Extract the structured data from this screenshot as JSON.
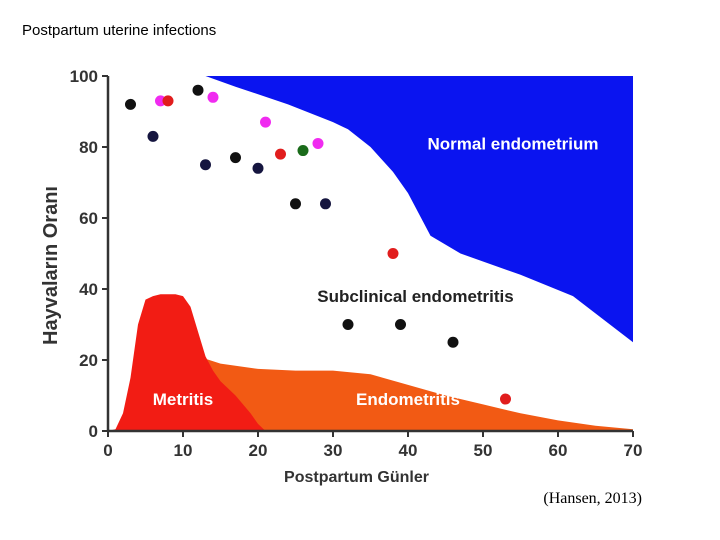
{
  "page": {
    "title": "Postpartum uterine infections",
    "citation": "(Hansen, 2013)"
  },
  "chart_data": {
    "type": "area",
    "title": "",
    "xlabel": "Postpartum Günler",
    "ylabel": "Hayvaların Oranı",
    "xlim": [
      0,
      70
    ],
    "ylim": [
      0,
      100
    ],
    "x_ticks": [
      0,
      10,
      20,
      30,
      40,
      50,
      60,
      70
    ],
    "y_ticks": [
      0,
      20,
      40,
      60,
      80,
      100
    ],
    "grid": false,
    "regions": [
      {
        "name": "Normal endometrium",
        "color": "#0a14f0",
        "label_at": [
          54,
          81
        ],
        "label_color": "#ffffff",
        "upper": [
          [
            0,
            100
          ],
          [
            13,
            100
          ],
          [
            17,
            97
          ],
          [
            24,
            92
          ],
          [
            30,
            87
          ],
          [
            32,
            85
          ],
          [
            35,
            80
          ],
          [
            38,
            73
          ],
          [
            40,
            67
          ],
          [
            43,
            55
          ],
          [
            47,
            50
          ],
          [
            55,
            44
          ],
          [
            62,
            38
          ],
          [
            70,
            25
          ]
        ],
        "lower_is_top": true
      },
      {
        "name": "Subclinical endometritis",
        "color": "#ffffff",
        "label_at": [
          41,
          38
        ],
        "label_color": "#222222"
      },
      {
        "name": "Endometritis",
        "color": "#f25a14",
        "label_at": [
          40,
          9
        ],
        "label_color": "#ffffff",
        "upper": [
          [
            12,
            21
          ],
          [
            15,
            19
          ],
          [
            20,
            17.5
          ],
          [
            25,
            17
          ],
          [
            30,
            17
          ],
          [
            35,
            16
          ],
          [
            40,
            13
          ],
          [
            45,
            10
          ],
          [
            50,
            7.5
          ],
          [
            55,
            5
          ],
          [
            60,
            3
          ],
          [
            65,
            1.5
          ],
          [
            70,
            0.5
          ]
        ]
      },
      {
        "name": "Metritis",
        "color": "#f21c14",
        "label_at": [
          10,
          9
        ],
        "label_color": "#ffffff",
        "upper": [
          [
            0,
            0
          ],
          [
            1,
            0.5
          ],
          [
            2,
            5
          ],
          [
            3,
            15
          ],
          [
            4,
            30
          ],
          [
            5,
            37
          ],
          [
            6,
            38
          ],
          [
            7,
            38.5
          ],
          [
            9,
            38.5
          ],
          [
            10,
            38
          ],
          [
            11,
            35
          ],
          [
            12,
            28
          ],
          [
            13,
            21
          ],
          [
            14,
            17
          ],
          [
            15,
            14
          ],
          [
            17,
            10
          ],
          [
            19,
            5
          ],
          [
            20,
            2
          ],
          [
            21,
            0
          ]
        ]
      }
    ],
    "points": [
      {
        "x": 3,
        "y": 92,
        "color": "#111111"
      },
      {
        "x": 6,
        "y": 83,
        "color": "#15153f"
      },
      {
        "x": 7,
        "y": 93,
        "color": "#f02bf0"
      },
      {
        "x": 8,
        "y": 93,
        "color": "#e11d1d"
      },
      {
        "x": 12,
        "y": 96,
        "color": "#111111"
      },
      {
        "x": 13,
        "y": 75,
        "color": "#15153f"
      },
      {
        "x": 14,
        "y": 94,
        "color": "#f02bf0"
      },
      {
        "x": 17,
        "y": 77,
        "color": "#111111"
      },
      {
        "x": 20,
        "y": 74,
        "color": "#15153f"
      },
      {
        "x": 21,
        "y": 87,
        "color": "#f02bf0"
      },
      {
        "x": 23,
        "y": 78,
        "color": "#e11d1d"
      },
      {
        "x": 25,
        "y": 64,
        "color": "#111111"
      },
      {
        "x": 26,
        "y": 79,
        "color": "#1a6b1a"
      },
      {
        "x": 28,
        "y": 81,
        "color": "#f02bf0"
      },
      {
        "x": 29,
        "y": 64,
        "color": "#15153f"
      },
      {
        "x": 32,
        "y": 30,
        "color": "#111111"
      },
      {
        "x": 38,
        "y": 50,
        "color": "#e11d1d"
      },
      {
        "x": 39,
        "y": 30,
        "color": "#111111"
      },
      {
        "x": 46,
        "y": 25,
        "color": "#111111"
      },
      {
        "x": 53,
        "y": 9,
        "color": "#e11d1d"
      }
    ]
  }
}
